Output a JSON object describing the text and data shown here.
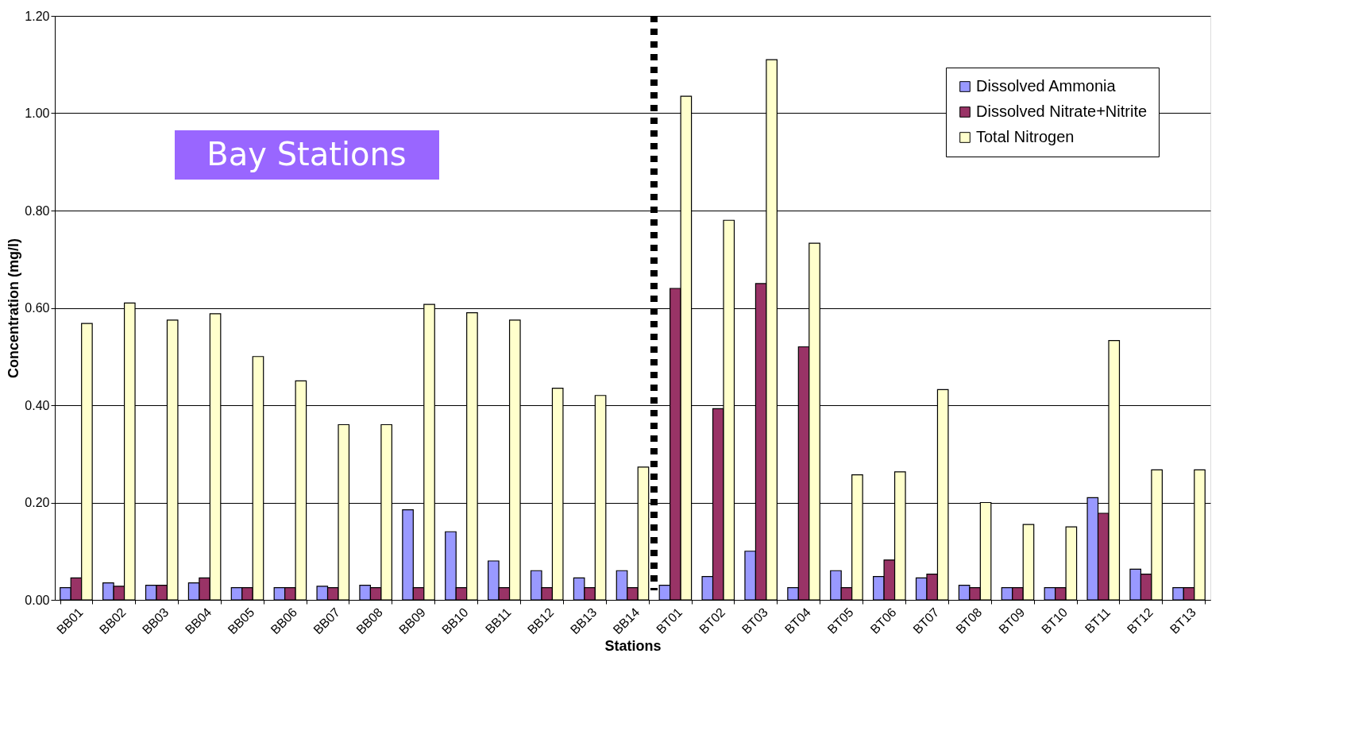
{
  "chart_data": {
    "type": "bar",
    "xlabel": "Stations",
    "ylabel": "Concentration (mg/l)",
    "categories": [
      "BB01",
      "BB02",
      "BB03",
      "BB04",
      "BB05",
      "BB06",
      "BB07",
      "BB08",
      "BB09",
      "BB10",
      "BB11",
      "BB12",
      "BB13",
      "BB14",
      "BT01",
      "BT02",
      "BT03",
      "BT04",
      "BT05",
      "BT06",
      "BT07",
      "BT08",
      "BT09",
      "BT10",
      "BT11",
      "BT12",
      "BT13"
    ],
    "series": [
      {
        "name": "Dissolved Ammonia",
        "color": "#9999ff",
        "values": [
          0.025,
          0.035,
          0.03,
          0.035,
          0.025,
          0.025,
          0.028,
          0.03,
          0.185,
          0.14,
          0.08,
          0.06,
          0.045,
          0.06,
          0.03,
          0.048,
          0.1,
          0.025,
          0.06,
          0.048,
          0.045,
          0.03,
          0.025,
          0.025,
          0.21,
          0.063,
          0.025
        ]
      },
      {
        "name": "Dissolved Nitrate+Nitrite",
        "color": "#993366",
        "values": [
          0.045,
          0.028,
          0.03,
          0.045,
          0.025,
          0.025,
          0.025,
          0.025,
          0.025,
          0.025,
          0.025,
          0.025,
          0.025,
          0.025,
          0.64,
          0.393,
          0.65,
          0.52,
          0.025,
          0.082,
          0.053,
          0.025,
          0.025,
          0.025,
          0.178,
          0.053,
          0.025
        ]
      },
      {
        "name": "Total Nitrogen",
        "color": "#ffffcc",
        "values": [
          0.568,
          0.61,
          0.575,
          0.588,
          0.5,
          0.45,
          0.36,
          0.36,
          0.607,
          0.59,
          0.575,
          0.435,
          0.42,
          0.273,
          1.035,
          0.78,
          1.11,
          0.733,
          0.257,
          0.263,
          0.432,
          0.2,
          0.155,
          0.15,
          0.533,
          0.267,
          0.267
        ]
      }
    ],
    "ylim": [
      0,
      1.2
    ],
    "yticks": [
      {
        "value": 0,
        "label": "0.00"
      },
      {
        "value": 0.2,
        "label": "0.20"
      },
      {
        "value": 0.4,
        "label": "0.40"
      },
      {
        "value": 0.6,
        "label": "0.60"
      },
      {
        "value": 0.8,
        "label": "0.80"
      },
      {
        "value": 1.0,
        "label": "1.00"
      },
      {
        "value": 1.2,
        "label": "1.20"
      }
    ],
    "grid": "y",
    "legend": "top right",
    "ref_lines": [
      {
        "axis": "x",
        "value": "BT01",
        "color": "#000000",
        "line_style": "dashed"
      }
    ],
    "annotations": [
      "Bay Stations"
    ]
  }
}
